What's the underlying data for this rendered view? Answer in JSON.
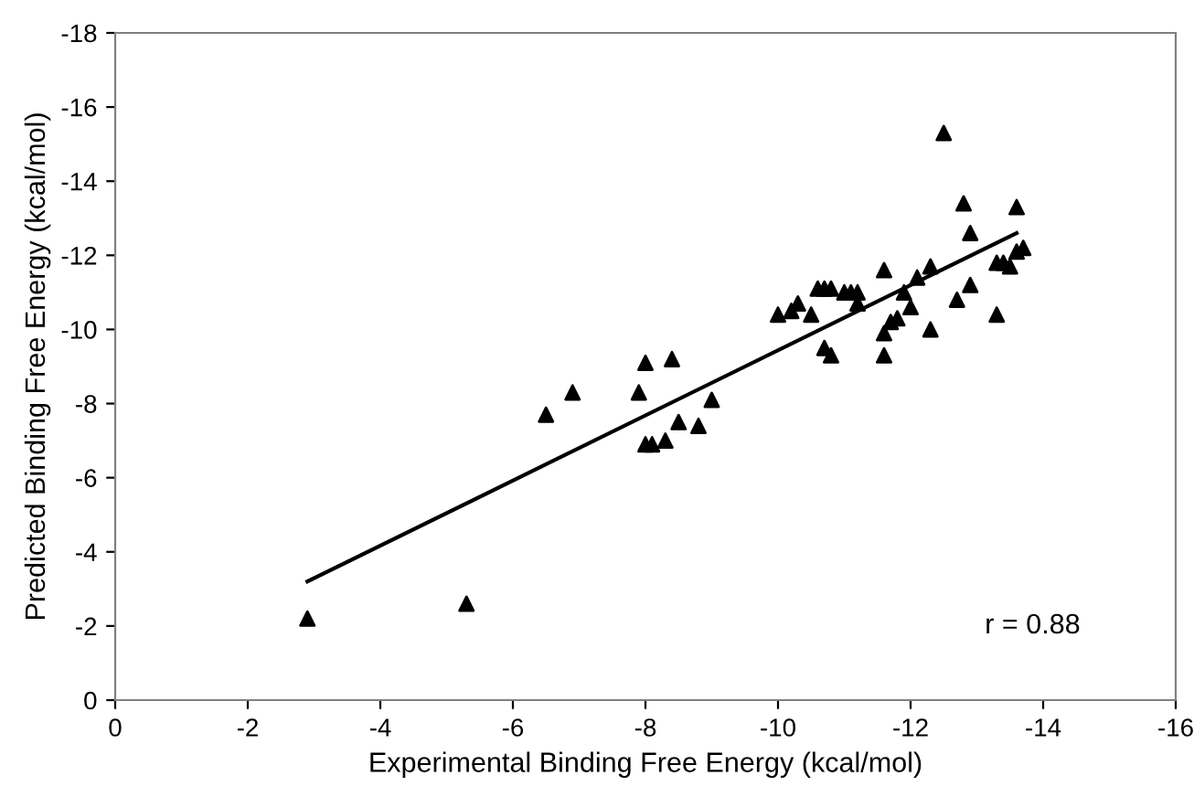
{
  "chart_data": {
    "type": "scatter",
    "xlabel": "Experimental Binding Free Energy (kcal/mol)",
    "ylabel": "Predicted Binding Free Energy (kcal/mol)",
    "xlim": [
      0,
      -16
    ],
    "xticks": [
      0,
      -2,
      -4,
      -6,
      -8,
      -10,
      -12,
      -14,
      -16
    ],
    "ylim": [
      0,
      -18
    ],
    "yticks": [
      0,
      -2,
      -4,
      -6,
      -8,
      -10,
      -12,
      -14,
      -16,
      -18
    ],
    "grid": false,
    "legend": false,
    "annotations": [
      "r = 0.88"
    ],
    "series": [
      {
        "color": "#000000",
        "marker": "triangle",
        "x": [
          -2.9,
          -5.3,
          -6.5,
          -6.9,
          -7.9,
          -8.0,
          -8.0,
          -8.1,
          -8.3,
          -8.4,
          -8.5,
          -8.8,
          -9.0,
          -10.0,
          -10.2,
          -10.3,
          -10.5,
          -10.6,
          -10.7,
          -10.8,
          -10.7,
          -10.8,
          -11.0,
          -11.1,
          -11.2,
          -11.2,
          -11.6,
          -11.6,
          -11.6,
          -11.7,
          -11.8,
          -11.9,
          -12.0,
          -12.1,
          -12.3,
          -12.3,
          -12.5,
          -12.7,
          -12.8,
          -12.9,
          -12.9,
          -13.3,
          -13.3,
          -13.4,
          -13.5,
          -13.6,
          -13.6,
          -13.7
        ],
        "values": [
          -2.2,
          -2.6,
          -7.7,
          -8.3,
          -8.3,
          -9.1,
          -6.9,
          -6.9,
          -7.0,
          -9.2,
          -7.5,
          -7.4,
          -8.1,
          -10.4,
          -10.5,
          -10.7,
          -10.4,
          -11.1,
          -11.1,
          -11.1,
          -9.5,
          -9.3,
          -11.0,
          -11.0,
          -11.0,
          -10.7,
          -11.6,
          -9.3,
          -9.9,
          -10.2,
          -10.3,
          -11.0,
          -10.6,
          -11.4,
          -11.7,
          -10.0,
          -15.3,
          -10.8,
          -13.4,
          -11.2,
          -12.6,
          -11.8,
          -10.4,
          -11.8,
          -11.7,
          -13.3,
          -12.1,
          -12.2
        ]
      },
      {
        "type": "line",
        "color": "#000000",
        "marker": "none",
        "line_style": "solid",
        "x": [
          -2.9,
          -13.6
        ],
        "values": [
          -3.2,
          -12.6
        ]
      }
    ]
  }
}
